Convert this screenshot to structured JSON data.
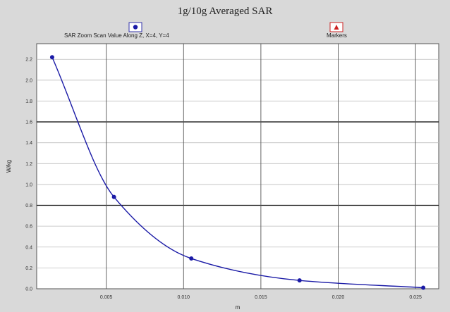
{
  "chart_data": {
    "type": "line",
    "title": "1g/10g Averaged SAR",
    "xlabel": "m",
    "ylabel": "W/kg",
    "xlim": [
      0.0005,
      0.0265
    ],
    "ylim": [
      0.0,
      2.35
    ],
    "x_ticks": [
      {
        "value": 0.005,
        "label": "0.005"
      },
      {
        "value": 0.01,
        "label": "0.010"
      },
      {
        "value": 0.015,
        "label": "0.015"
      },
      {
        "value": 0.02,
        "label": "0.020"
      },
      {
        "value": 0.025,
        "label": "0.025"
      }
    ],
    "y_ticks": [
      {
        "value": 0.0,
        "label": "0.0"
      },
      {
        "value": 0.2,
        "label": "0.2"
      },
      {
        "value": 0.4,
        "label": "0.4"
      },
      {
        "value": 0.6,
        "label": "0.6"
      },
      {
        "value": 0.8,
        "label": "0.8"
      },
      {
        "value": 1.0,
        "label": "1.0"
      },
      {
        "value": 1.2,
        "label": "1.2"
      },
      {
        "value": 1.4,
        "label": "1.4"
      },
      {
        "value": 1.6,
        "label": "1.6"
      },
      {
        "value": 1.8,
        "label": "1.8"
      },
      {
        "value": 2.0,
        "label": "2.0"
      },
      {
        "value": 2.2,
        "label": "2.2"
      }
    ],
    "major_y": [
      0.8,
      1.6
    ],
    "grid": true,
    "legend_position": "top",
    "series": [
      {
        "name": "SAR Zoom Scan Value Along Z, X=4, Y=4",
        "color": "#1a1aa6",
        "marker": "circle",
        "points": [
          {
            "x": 0.0015,
            "y": 2.22
          },
          {
            "x": 0.0055,
            "y": 0.88
          },
          {
            "x": 0.0105,
            "y": 0.29
          },
          {
            "x": 0.0175,
            "y": 0.08
          },
          {
            "x": 0.0255,
            "y": 0.01
          }
        ]
      }
    ],
    "legend_markers": {
      "name": "Markers",
      "color": "#cc2222",
      "marker": "triangle"
    }
  }
}
